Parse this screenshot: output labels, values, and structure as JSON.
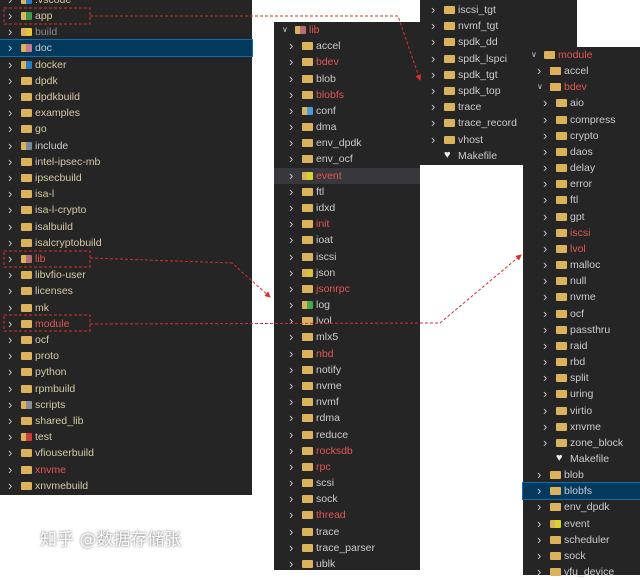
{
  "colors": {
    "panel_bg": "#252526",
    "selected_bg": "#04395e",
    "modified_text": "#e5574f",
    "folder": "#dcb35c",
    "annotation": "#d9302c"
  },
  "left_panel": {
    "items": [
      {
        "label": ".vscode",
        "icon": "vscode-folder-icon",
        "color": "tan",
        "chevron": "right"
      },
      {
        "label": "app",
        "icon": "app-folder-icon",
        "color": "tan",
        "chevron": "right"
      },
      {
        "label": "build",
        "icon": "build-folder-icon",
        "color": "ignored",
        "chevron": "right"
      },
      {
        "label": "doc",
        "icon": "doc-folder-icon",
        "color": "normal",
        "chevron": "right",
        "selected": true
      },
      {
        "label": "docker",
        "icon": "docker-folder-icon",
        "color": "tan",
        "chevron": "right"
      },
      {
        "label": "dpdk",
        "icon": "folder-icon",
        "color": "tan",
        "chevron": "right"
      },
      {
        "label": "dpdkbuild",
        "icon": "folder-icon",
        "color": "tan",
        "chevron": "right"
      },
      {
        "label": "examples",
        "icon": "folder-icon",
        "color": "tan",
        "chevron": "right"
      },
      {
        "label": "go",
        "icon": "folder-icon",
        "color": "tan",
        "chevron": "right"
      },
      {
        "label": "include",
        "icon": "include-folder-icon",
        "color": "normal",
        "chevron": "right"
      },
      {
        "label": "intel-ipsec-mb",
        "icon": "folder-icon",
        "color": "tan",
        "chevron": "right"
      },
      {
        "label": "ipsecbuild",
        "icon": "folder-icon",
        "color": "tan",
        "chevron": "right"
      },
      {
        "label": "isa-l",
        "icon": "folder-icon",
        "color": "tan",
        "chevron": "right"
      },
      {
        "label": "isa-l-crypto",
        "icon": "folder-icon",
        "color": "tan",
        "chevron": "right"
      },
      {
        "label": "isalbuild",
        "icon": "folder-icon",
        "color": "tan",
        "chevron": "right"
      },
      {
        "label": "isalcryptobuild",
        "icon": "folder-icon",
        "color": "tan",
        "chevron": "right"
      },
      {
        "label": "lib",
        "icon": "lib-folder-icon",
        "color": "red",
        "chevron": "right"
      },
      {
        "label": "libvfio-user",
        "icon": "folder-icon",
        "color": "tan",
        "chevron": "right"
      },
      {
        "label": "licenses",
        "icon": "folder-icon",
        "color": "tan",
        "chevron": "right"
      },
      {
        "label": "mk",
        "icon": "folder-icon",
        "color": "tan",
        "chevron": "right"
      },
      {
        "label": "module",
        "icon": "folder-icon",
        "color": "red",
        "chevron": "right"
      },
      {
        "label": "ocf",
        "icon": "folder-icon",
        "color": "tan",
        "chevron": "right"
      },
      {
        "label": "proto",
        "icon": "folder-icon",
        "color": "tan",
        "chevron": "right"
      },
      {
        "label": "python",
        "icon": "folder-icon",
        "color": "tan",
        "chevron": "right"
      },
      {
        "label": "rpmbuild",
        "icon": "folder-icon",
        "color": "tan",
        "chevron": "right"
      },
      {
        "label": "scripts",
        "icon": "scripts-folder-icon",
        "color": "tan",
        "chevron": "right"
      },
      {
        "label": "shared_lib",
        "icon": "folder-icon",
        "color": "tan",
        "chevron": "right"
      },
      {
        "label": "test",
        "icon": "test-folder-icon",
        "color": "tan",
        "chevron": "right"
      },
      {
        "label": "vfiouserbuild",
        "icon": "folder-icon",
        "color": "tan",
        "chevron": "right"
      },
      {
        "label": "xnvme",
        "icon": "folder-icon",
        "color": "red",
        "chevron": "right"
      },
      {
        "label": "xnvmebuild",
        "icon": "folder-icon",
        "color": "tan",
        "chevron": "right"
      }
    ]
  },
  "lib_panel": {
    "items": [
      {
        "label": "lib",
        "icon": "lib-folder-open-icon",
        "color": "red",
        "chevron": "down",
        "level": 0
      },
      {
        "label": "accel",
        "icon": "folder-icon",
        "color": "normal",
        "chevron": "right",
        "level": 1
      },
      {
        "label": "bdev",
        "icon": "folder-icon",
        "color": "red",
        "chevron": "right",
        "level": 1
      },
      {
        "label": "blob",
        "icon": "folder-icon",
        "color": "normal",
        "chevron": "right",
        "level": 1
      },
      {
        "label": "blobfs",
        "icon": "folder-icon",
        "color": "red",
        "chevron": "right",
        "level": 1
      },
      {
        "label": "conf",
        "icon": "conf-folder-icon",
        "color": "normal",
        "chevron": "right",
        "level": 1
      },
      {
        "label": "dma",
        "icon": "folder-icon",
        "color": "normal",
        "chevron": "right",
        "level": 1
      },
      {
        "label": "env_dpdk",
        "icon": "folder-icon",
        "color": "normal",
        "chevron": "right",
        "level": 1
      },
      {
        "label": "env_ocf",
        "icon": "folder-icon",
        "color": "normal",
        "chevron": "right",
        "level": 1
      },
      {
        "label": "event",
        "icon": "event-folder-icon",
        "color": "red",
        "chevron": "right",
        "level": 1,
        "hover": true
      },
      {
        "label": "ftl",
        "icon": "folder-icon",
        "color": "normal",
        "chevron": "right",
        "level": 1
      },
      {
        "label": "idxd",
        "icon": "folder-icon",
        "color": "normal",
        "chevron": "right",
        "level": 1
      },
      {
        "label": "init",
        "icon": "folder-icon",
        "color": "red",
        "chevron": "right",
        "level": 1
      },
      {
        "label": "ioat",
        "icon": "folder-icon",
        "color": "normal",
        "chevron": "right",
        "level": 1
      },
      {
        "label": "iscsi",
        "icon": "folder-icon",
        "color": "normal",
        "chevron": "right",
        "level": 1
      },
      {
        "label": "json",
        "icon": "json-folder-icon",
        "color": "normal",
        "chevron": "right",
        "level": 1
      },
      {
        "label": "jsonrpc",
        "icon": "folder-icon",
        "color": "red",
        "chevron": "right",
        "level": 1
      },
      {
        "label": "log",
        "icon": "log-folder-icon",
        "color": "normal",
        "chevron": "right",
        "level": 1
      },
      {
        "label": "lvol",
        "icon": "folder-icon",
        "color": "normal",
        "chevron": "right",
        "level": 1
      },
      {
        "label": "mlx5",
        "icon": "folder-icon",
        "color": "normal",
        "chevron": "right",
        "level": 1
      },
      {
        "label": "nbd",
        "icon": "folder-icon",
        "color": "red",
        "chevron": "right",
        "level": 1
      },
      {
        "label": "notify",
        "icon": "folder-icon",
        "color": "normal",
        "chevron": "right",
        "level": 1
      },
      {
        "label": "nvme",
        "icon": "folder-icon",
        "color": "normal",
        "chevron": "right",
        "level": 1
      },
      {
        "label": "nvmf",
        "icon": "folder-icon",
        "color": "normal",
        "chevron": "right",
        "level": 1
      },
      {
        "label": "rdma",
        "icon": "folder-icon",
        "color": "normal",
        "chevron": "right",
        "level": 1
      },
      {
        "label": "reduce",
        "icon": "folder-icon",
        "color": "normal",
        "chevron": "right",
        "level": 1
      },
      {
        "label": "rocksdb",
        "icon": "folder-icon",
        "color": "red",
        "chevron": "right",
        "level": 1
      },
      {
        "label": "rpc",
        "icon": "folder-icon",
        "color": "red",
        "chevron": "right",
        "level": 1
      },
      {
        "label": "scsi",
        "icon": "folder-icon",
        "color": "normal",
        "chevron": "right",
        "level": 1
      },
      {
        "label": "sock",
        "icon": "folder-icon",
        "color": "normal",
        "chevron": "right",
        "level": 1
      },
      {
        "label": "thread",
        "icon": "folder-icon",
        "color": "red",
        "chevron": "right",
        "level": 1
      },
      {
        "label": "trace",
        "icon": "folder-icon",
        "color": "normal",
        "chevron": "right",
        "level": 1
      },
      {
        "label": "trace_parser",
        "icon": "folder-icon",
        "color": "normal",
        "chevron": "right",
        "level": 1
      },
      {
        "label": "ublk",
        "icon": "folder-icon",
        "color": "normal",
        "chevron": "right",
        "level": 1
      }
    ]
  },
  "app_panel": {
    "items": [
      {
        "label": "iscsi_tgt",
        "icon": "folder-icon",
        "color": "normal",
        "chevron": "right"
      },
      {
        "label": "nvmf_tgt",
        "icon": "folder-icon",
        "color": "normal",
        "chevron": "right"
      },
      {
        "label": "spdk_dd",
        "icon": "folder-icon",
        "color": "normal",
        "chevron": "right"
      },
      {
        "label": "spdk_lspci",
        "icon": "folder-icon",
        "color": "normal",
        "chevron": "right"
      },
      {
        "label": "spdk_tgt",
        "icon": "folder-icon",
        "color": "normal",
        "chevron": "right"
      },
      {
        "label": "spdk_top",
        "icon": "folder-icon",
        "color": "normal",
        "chevron": "right"
      },
      {
        "label": "trace",
        "icon": "folder-icon",
        "color": "normal",
        "chevron": "right"
      },
      {
        "label": "trace_record",
        "icon": "folder-icon",
        "color": "normal",
        "chevron": "right"
      },
      {
        "label": "vhost",
        "icon": "folder-icon",
        "color": "normal",
        "chevron": "right"
      },
      {
        "label": "Makefile",
        "icon": "makefile-icon",
        "color": "normal",
        "chevron": "none"
      }
    ]
  },
  "module_panel": {
    "items": [
      {
        "label": "module",
        "icon": "folder-open-icon",
        "color": "red",
        "chevron": "down",
        "level": 0
      },
      {
        "label": "accel",
        "icon": "folder-icon",
        "color": "normal",
        "chevron": "right",
        "level": 1
      },
      {
        "label": "bdev",
        "icon": "folder-open-icon",
        "color": "red",
        "chevron": "down",
        "level": 1
      },
      {
        "label": "aio",
        "icon": "folder-icon",
        "color": "normal",
        "chevron": "right",
        "level": 2
      },
      {
        "label": "compress",
        "icon": "folder-icon",
        "color": "normal",
        "chevron": "right",
        "level": 2
      },
      {
        "label": "crypto",
        "icon": "folder-icon",
        "color": "normal",
        "chevron": "right",
        "level": 2
      },
      {
        "label": "daos",
        "icon": "folder-icon",
        "color": "normal",
        "chevron": "right",
        "level": 2
      },
      {
        "label": "delay",
        "icon": "folder-icon",
        "color": "normal",
        "chevron": "right",
        "level": 2
      },
      {
        "label": "error",
        "icon": "folder-icon",
        "color": "normal",
        "chevron": "right",
        "level": 2
      },
      {
        "label": "ftl",
        "icon": "folder-icon",
        "color": "normal",
        "chevron": "right",
        "level": 2
      },
      {
        "label": "gpt",
        "icon": "folder-icon",
        "color": "normal",
        "chevron": "right",
        "level": 2
      },
      {
        "label": "iscsi",
        "icon": "folder-icon",
        "color": "red",
        "chevron": "right",
        "level": 2
      },
      {
        "label": "lvol",
        "icon": "folder-icon",
        "color": "red",
        "chevron": "right",
        "level": 2
      },
      {
        "label": "malloc",
        "icon": "folder-icon",
        "color": "normal",
        "chevron": "right",
        "level": 2
      },
      {
        "label": "null",
        "icon": "folder-icon",
        "color": "normal",
        "chevron": "right",
        "level": 2
      },
      {
        "label": "nvme",
        "icon": "folder-icon",
        "color": "normal",
        "chevron": "right",
        "level": 2
      },
      {
        "label": "ocf",
        "icon": "folder-icon",
        "color": "normal",
        "chevron": "right",
        "level": 2
      },
      {
        "label": "passthru",
        "icon": "folder-icon",
        "color": "normal",
        "chevron": "right",
        "level": 2
      },
      {
        "label": "raid",
        "icon": "folder-icon",
        "color": "normal",
        "chevron": "right",
        "level": 2
      },
      {
        "label": "rbd",
        "icon": "folder-icon",
        "color": "normal",
        "chevron": "right",
        "level": 2
      },
      {
        "label": "split",
        "icon": "folder-icon",
        "color": "normal",
        "chevron": "right",
        "level": 2
      },
      {
        "label": "uring",
        "icon": "folder-icon",
        "color": "normal",
        "chevron": "right",
        "level": 2
      },
      {
        "label": "virtio",
        "icon": "folder-icon",
        "color": "normal",
        "chevron": "right",
        "level": 2
      },
      {
        "label": "xnvme",
        "icon": "folder-icon",
        "color": "normal",
        "chevron": "right",
        "level": 2
      },
      {
        "label": "zone_block",
        "icon": "folder-icon",
        "color": "normal",
        "chevron": "right",
        "level": 2
      },
      {
        "label": "Makefile",
        "icon": "makefile-icon",
        "color": "normal",
        "chevron": "none",
        "level": 2
      },
      {
        "label": "blob",
        "icon": "folder-icon",
        "color": "normal",
        "chevron": "right",
        "level": 1
      },
      {
        "label": "blobfs",
        "icon": "folder-icon",
        "color": "normal",
        "chevron": "right",
        "level": 1,
        "selected": true
      },
      {
        "label": "env_dpdk",
        "icon": "folder-icon",
        "color": "normal",
        "chevron": "right",
        "level": 1
      },
      {
        "label": "event",
        "icon": "event-folder-icon",
        "color": "normal",
        "chevron": "right",
        "level": 1
      },
      {
        "label": "scheduler",
        "icon": "folder-icon",
        "color": "normal",
        "chevron": "right",
        "level": 1
      },
      {
        "label": "sock",
        "icon": "folder-icon",
        "color": "normal",
        "chevron": "right",
        "level": 1
      },
      {
        "label": "vfu_device",
        "icon": "folder-icon",
        "color": "normal",
        "chevron": "right",
        "level": 1
      }
    ]
  },
  "watermark": "知乎 @数据存储张"
}
